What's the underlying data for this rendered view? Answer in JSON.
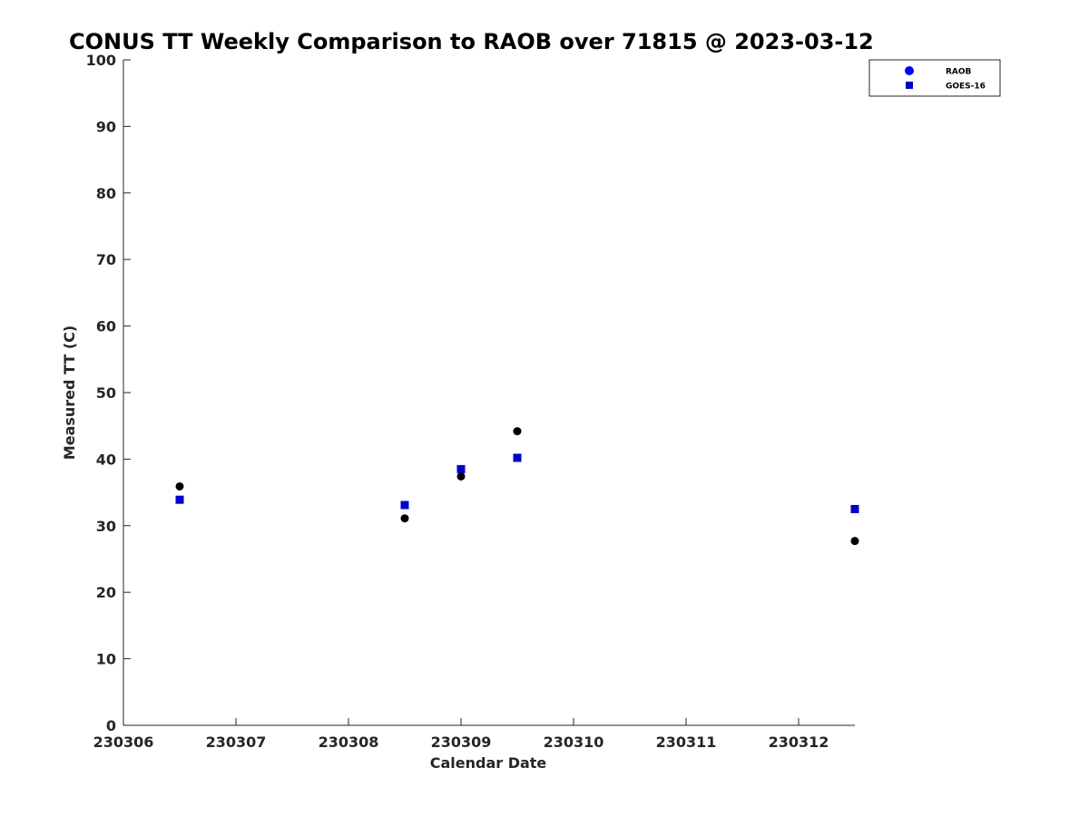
{
  "chart_data": {
    "type": "scatter",
    "title": "CONUS TT Weekly Comparison to RAOB over 71815 @ 2023-03-12",
    "xlabel": "Calendar Date",
    "ylabel": "Measured TT (C)",
    "xlim": [
      230306,
      230312.5
    ],
    "ylim": [
      0,
      100
    ],
    "xticks": [
      230306,
      230307,
      230308,
      230309,
      230310,
      230311,
      230312
    ],
    "xtick_labels": [
      "230306",
      "230307",
      "230308",
      "230309",
      "230310",
      "230311",
      "230312"
    ],
    "yticks": [
      0,
      10,
      20,
      30,
      40,
      50,
      60,
      70,
      80,
      90,
      100
    ],
    "ytick_labels": [
      "0",
      "10",
      "20",
      "30",
      "40",
      "50",
      "60",
      "70",
      "80",
      "90",
      "100"
    ],
    "grid": false,
    "legend_position": "top-right",
    "series": [
      {
        "name": "RAOB",
        "marker": "circle",
        "color": "#000000",
        "legend_color": "#0000ff",
        "points": [
          {
            "x": 230306.5,
            "y": 35.9
          },
          {
            "x": 230308.5,
            "y": 31.1
          },
          {
            "x": 230309.0,
            "y": 37.4
          },
          {
            "x": 230309.5,
            "y": 44.2
          },
          {
            "x": 230312.5,
            "y": 27.7
          }
        ]
      },
      {
        "name": "GOES-16",
        "marker": "square",
        "color": "#0000cc",
        "legend_color": "#0000cc",
        "points": [
          {
            "x": 230306.5,
            "y": 33.9
          },
          {
            "x": 230308.5,
            "y": 33.1
          },
          {
            "x": 230309.0,
            "y": 38.5
          },
          {
            "x": 230309.5,
            "y": 40.2
          },
          {
            "x": 230312.5,
            "y": 32.5
          }
        ]
      }
    ]
  }
}
